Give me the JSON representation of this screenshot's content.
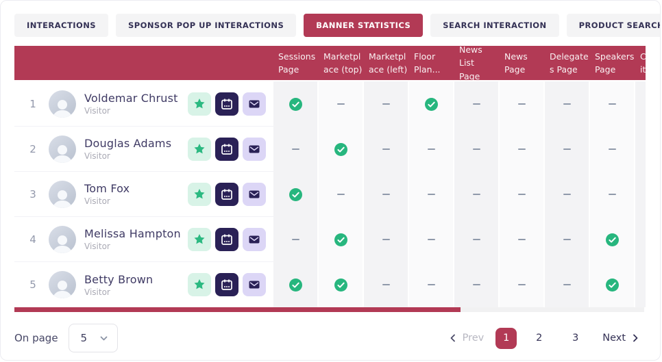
{
  "tabs": {
    "items": [
      {
        "label": "INTERACTIONS",
        "active": false
      },
      {
        "label": "SPONSOR POP UP INTERACTIONS",
        "active": false
      },
      {
        "label": "BANNER STATISTICS",
        "active": true
      },
      {
        "label": "SEARCH INTERACTION",
        "active": false
      },
      {
        "label": "PRODUCT SEARCH INTERACTION",
        "active": false
      }
    ],
    "more_icon": "chevron-right"
  },
  "table": {
    "columns": [
      "Sessions\nPage",
      "Marketpl\nace (top)",
      "Marketpl\nace (left)",
      "Floor\nPlan...",
      "News List\nPage",
      "News\nPage",
      "Delegate\ns Page",
      "Speakers\nPage",
      "Commun\nity"
    ],
    "row_action_icons": [
      "star-icon",
      "calendar-icon",
      "mail-icon"
    ],
    "rows": [
      {
        "num": "1",
        "name": "Voldemar Chrust",
        "role": "Visitor",
        "cells": [
          "check",
          "dash",
          "dash",
          "check",
          "dash",
          "dash",
          "dash",
          "dash",
          ""
        ]
      },
      {
        "num": "2",
        "name": "Douglas Adams",
        "role": "Visitor",
        "cells": [
          "dash",
          "check",
          "dash",
          "dash",
          "dash",
          "dash",
          "dash",
          "dash",
          ""
        ]
      },
      {
        "num": "3",
        "name": "Tom Fox",
        "role": "Visitor",
        "cells": [
          "check",
          "dash",
          "dash",
          "dash",
          "dash",
          "dash",
          "dash",
          "dash",
          ""
        ]
      },
      {
        "num": "4",
        "name": "Melissa Hampton",
        "role": "Visitor",
        "cells": [
          "dash",
          "check",
          "dash",
          "dash",
          "dash",
          "dash",
          "dash",
          "check",
          ""
        ]
      },
      {
        "num": "5",
        "name": "Betty Brown",
        "role": "Visitor",
        "cells": [
          "check",
          "check",
          "dash",
          "dash",
          "dash",
          "dash",
          "dash",
          "check",
          ""
        ]
      }
    ]
  },
  "footer": {
    "on_page_label": "On page",
    "page_size_value": "5",
    "pagination": {
      "prev_label": "Prev",
      "pages": [
        {
          "label": "1",
          "active": true
        },
        {
          "label": "2",
          "active": false
        },
        {
          "label": "3",
          "active": false
        }
      ],
      "next_label": "Next"
    }
  },
  "colors": {
    "accent_crimson": "#b23a55",
    "check_green": "#27b67e",
    "dash_gray": "#8f99aa",
    "navy": "#2a2156",
    "mint": "#d8f3e7",
    "lavender": "#dcd6f6",
    "stripe_dark": "#f3f3f5",
    "stripe_light": "#fafafb"
  }
}
